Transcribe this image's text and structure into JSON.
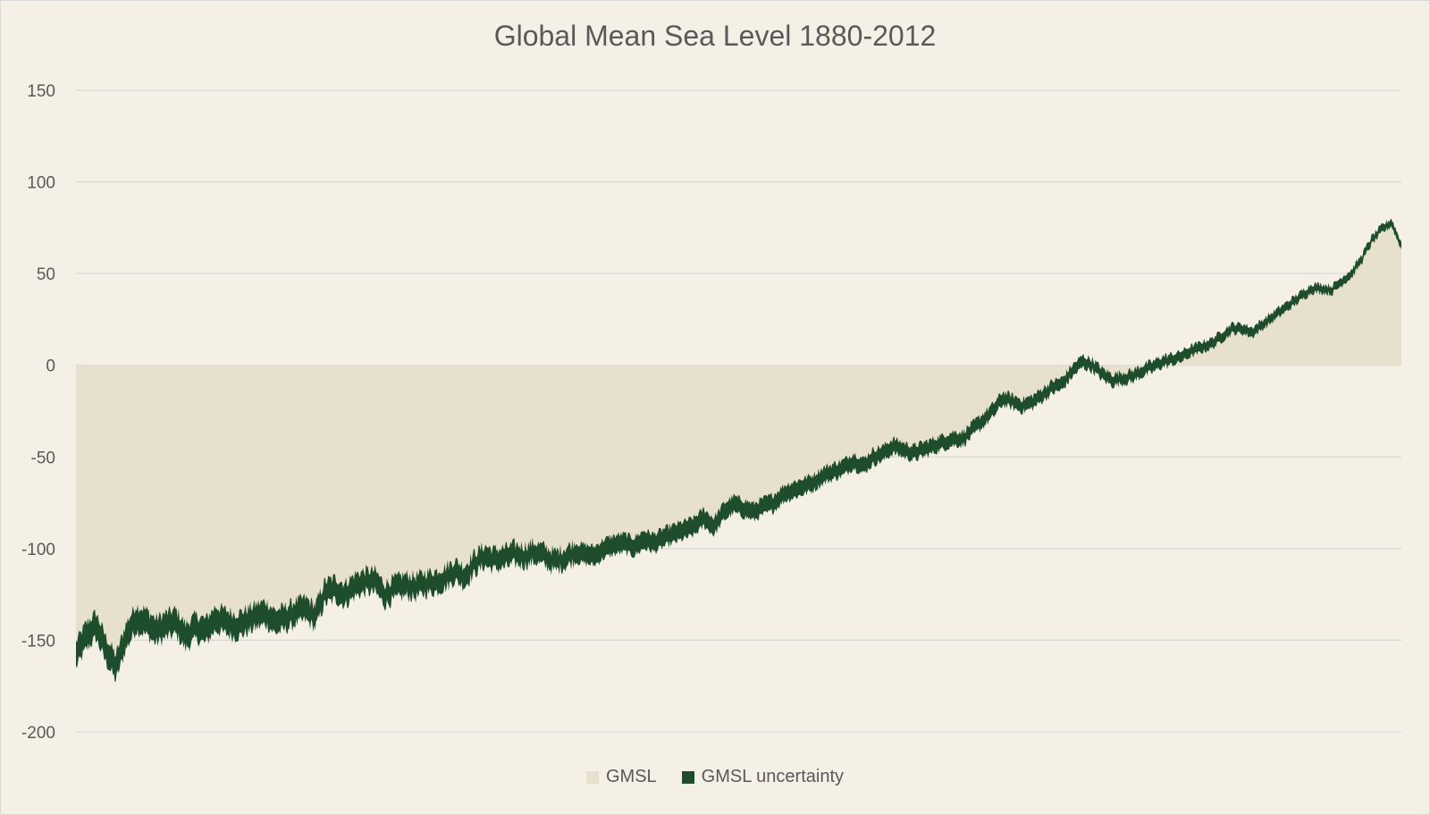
{
  "chart_data": {
    "type": "area",
    "title": "Global Mean Sea Level 1880-2012",
    "xlabel": "",
    "ylabel": "",
    "xlim": [
      1880,
      2013
    ],
    "ylim": [
      -200,
      150
    ],
    "y_ticks": [
      150,
      100,
      50,
      0,
      -50,
      -100,
      -150,
      -200
    ],
    "grid": true,
    "legend_position": "bottom",
    "colors": {
      "gmsl": "#e7e0cd",
      "uncertainty": "#1e4d2b",
      "grid": "#d9d9d9",
      "background": "#f5f0e6"
    },
    "series": [
      {
        "name": "GMSL",
        "type": "area",
        "points": [
          [
            1880,
            -158
          ],
          [
            1881,
            -148
          ],
          [
            1882,
            -142
          ],
          [
            1883,
            -155
          ],
          [
            1884,
            -165
          ],
          [
            1885,
            -148
          ],
          [
            1886,
            -138
          ],
          [
            1887,
            -140
          ],
          [
            1888,
            -145
          ],
          [
            1889,
            -142
          ],
          [
            1890,
            -140
          ],
          [
            1891,
            -148
          ],
          [
            1892,
            -143
          ],
          [
            1893,
            -145
          ],
          [
            1894,
            -138
          ],
          [
            1895,
            -140
          ],
          [
            1896,
            -142
          ],
          [
            1897,
            -140
          ],
          [
            1898,
            -137
          ],
          [
            1899,
            -135
          ],
          [
            1900,
            -140
          ],
          [
            1901,
            -138
          ],
          [
            1902,
            -135
          ],
          [
            1903,
            -133
          ],
          [
            1904,
            -137
          ],
          [
            1905,
            -124
          ],
          [
            1906,
            -122
          ],
          [
            1907,
            -125
          ],
          [
            1908,
            -120
          ],
          [
            1909,
            -118
          ],
          [
            1910,
            -118
          ],
          [
            1911,
            -125
          ],
          [
            1912,
            -122
          ],
          [
            1913,
            -120
          ],
          [
            1914,
            -121
          ],
          [
            1915,
            -119
          ],
          [
            1916,
            -118
          ],
          [
            1917,
            -116
          ],
          [
            1918,
            -112
          ],
          [
            1919,
            -115
          ],
          [
            1920,
            -108
          ],
          [
            1921,
            -104
          ],
          [
            1922,
            -106
          ],
          [
            1923,
            -105
          ],
          [
            1924,
            -103
          ],
          [
            1925,
            -104
          ],
          [
            1926,
            -102
          ],
          [
            1927,
            -104
          ],
          [
            1928,
            -107
          ],
          [
            1929,
            -105
          ],
          [
            1930,
            -102
          ],
          [
            1931,
            -103
          ],
          [
            1932,
            -104
          ],
          [
            1933,
            -100
          ],
          [
            1934,
            -98
          ],
          [
            1935,
            -97
          ],
          [
            1936,
            -99
          ],
          [
            1937,
            -95
          ],
          [
            1938,
            -97
          ],
          [
            1939,
            -94
          ],
          [
            1940,
            -92
          ],
          [
            1941,
            -90
          ],
          [
            1942,
            -88
          ],
          [
            1943,
            -83
          ],
          [
            1944,
            -88
          ],
          [
            1945,
            -80
          ],
          [
            1946,
            -76
          ],
          [
            1947,
            -78
          ],
          [
            1948,
            -80
          ],
          [
            1949,
            -77
          ],
          [
            1950,
            -75
          ],
          [
            1951,
            -70
          ],
          [
            1952,
            -68
          ],
          [
            1953,
            -66
          ],
          [
            1954,
            -64
          ],
          [
            1955,
            -60
          ],
          [
            1956,
            -58
          ],
          [
            1957,
            -56
          ],
          [
            1958,
            -52
          ],
          [
            1959,
            -55
          ],
          [
            1960,
            -50
          ],
          [
            1961,
            -48
          ],
          [
            1962,
            -44
          ],
          [
            1963,
            -46
          ],
          [
            1964,
            -48
          ],
          [
            1965,
            -46
          ],
          [
            1966,
            -44
          ],
          [
            1967,
            -42
          ],
          [
            1968,
            -40
          ],
          [
            1969,
            -40
          ],
          [
            1970,
            -35
          ],
          [
            1971,
            -30
          ],
          [
            1972,
            -25
          ],
          [
            1973,
            -18
          ],
          [
            1974,
            -20
          ],
          [
            1975,
            -22
          ],
          [
            1976,
            -20
          ],
          [
            1977,
            -16
          ],
          [
            1978,
            -12
          ],
          [
            1979,
            -10
          ],
          [
            1980,
            -3
          ],
          [
            1981,
            2
          ],
          [
            1982,
            0
          ],
          [
            1983,
            -5
          ],
          [
            1984,
            -8
          ],
          [
            1985,
            -7
          ],
          [
            1986,
            -6
          ],
          [
            1987,
            -3
          ],
          [
            1988,
            -1
          ],
          [
            1989,
            2
          ],
          [
            1990,
            3
          ],
          [
            1991,
            5
          ],
          [
            1992,
            8
          ],
          [
            1993,
            10
          ],
          [
            1994,
            12
          ],
          [
            1995,
            16
          ],
          [
            1996,
            20
          ],
          [
            1997,
            20
          ],
          [
            1998,
            18
          ],
          [
            1999,
            22
          ],
          [
            2000,
            26
          ],
          [
            2001,
            30
          ],
          [
            2002,
            34
          ],
          [
            2003,
            38
          ],
          [
            2004,
            42
          ],
          [
            2005,
            42
          ],
          [
            2006,
            41
          ],
          [
            2007,
            46
          ],
          [
            2008,
            50
          ],
          [
            2009,
            58
          ],
          [
            2010,
            68
          ],
          [
            2011,
            74
          ],
          [
            2012,
            78
          ],
          [
            2013,
            65
          ]
        ]
      },
      {
        "name": "GMSL uncertainty",
        "type": "band",
        "band_width": [
          4,
          14
        ]
      }
    ]
  }
}
